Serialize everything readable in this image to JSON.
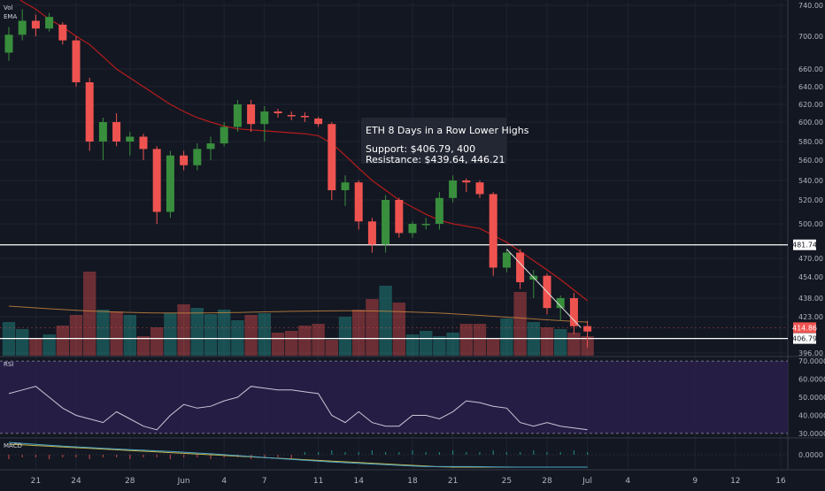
{
  "chart_data": {
    "type": "candlestick",
    "symbol_overlays": [
      "Vol",
      "EMA"
    ],
    "annotation": {
      "title": "ETH 8 Days in a Row Lower Highs",
      "support_line": "Support: $406.79, 400",
      "resistance_line": "Resistance: $439.64, 446.21"
    },
    "price_axis": {
      "ticks": [
        740,
        700,
        660,
        640,
        620,
        600,
        580,
        560,
        540,
        520,
        500,
        470,
        454,
        438,
        423,
        396
      ],
      "tick_labels": [
        "740.00",
        "700.00",
        "660.00",
        "640.00",
        "620.00",
        "600.00",
        "580.00",
        "560.00",
        "540.00",
        "520.00",
        "500.00",
        "470.00",
        "454.00",
        "438.00",
        "423.00",
        "396.00"
      ],
      "range": [
        392,
        745
      ]
    },
    "horizontal_lines": [
      {
        "value": 481.74,
        "label": "481.74",
        "role": "resistance"
      },
      {
        "value": 406.79,
        "label": "406.79",
        "role": "support"
      }
    ],
    "last_price": {
      "value": 414.86,
      "label": "414.86",
      "color": "#ef5350"
    },
    "x_axis": {
      "tick_labels": [
        "21",
        "24",
        "28",
        "Jun",
        "4",
        "7",
        "11",
        "14",
        "18",
        "21",
        "25",
        "28",
        "Jul",
        "4",
        "9",
        "12",
        "16"
      ]
    },
    "candles": [
      {
        "date": "May 19",
        "o": 680,
        "h": 712,
        "l": 670,
        "c": 702
      },
      {
        "date": "May 20",
        "o": 702,
        "h": 735,
        "l": 695,
        "c": 720
      },
      {
        "date": "May 21",
        "o": 720,
        "h": 728,
        "l": 700,
        "c": 710
      },
      {
        "date": "May 22",
        "o": 710,
        "h": 730,
        "l": 706,
        "c": 725
      },
      {
        "date": "May 23",
        "o": 715,
        "h": 718,
        "l": 690,
        "c": 695
      },
      {
        "date": "May 24",
        "o": 695,
        "h": 700,
        "l": 640,
        "c": 645
      },
      {
        "date": "May 25",
        "o": 645,
        "h": 650,
        "l": 570,
        "c": 580
      },
      {
        "date": "May 26",
        "o": 580,
        "h": 605,
        "l": 560,
        "c": 600
      },
      {
        "date": "May 27",
        "o": 600,
        "h": 610,
        "l": 575,
        "c": 580
      },
      {
        "date": "May 28",
        "o": 580,
        "h": 590,
        "l": 565,
        "c": 585
      },
      {
        "date": "May 29",
        "o": 585,
        "h": 588,
        "l": 560,
        "c": 572
      },
      {
        "date": "May 30",
        "o": 572,
        "h": 575,
        "l": 500,
        "c": 510
      },
      {
        "date": "May 31",
        "o": 510,
        "h": 570,
        "l": 505,
        "c": 565
      },
      {
        "date": "Jun 1",
        "o": 565,
        "h": 570,
        "l": 550,
        "c": 555
      },
      {
        "date": "Jun 2",
        "o": 555,
        "h": 578,
        "l": 550,
        "c": 572
      },
      {
        "date": "Jun 3",
        "o": 572,
        "h": 585,
        "l": 560,
        "c": 578
      },
      {
        "date": "Jun 4",
        "o": 578,
        "h": 600,
        "l": 575,
        "c": 595
      },
      {
        "date": "Jun 5",
        "o": 595,
        "h": 625,
        "l": 590,
        "c": 620
      },
      {
        "date": "Jun 6",
        "o": 620,
        "h": 625,
        "l": 590,
        "c": 598
      },
      {
        "date": "Jun 7",
        "o": 598,
        "h": 618,
        "l": 580,
        "c": 612
      },
      {
        "date": "Jun 8",
        "o": 612,
        "h": 615,
        "l": 605,
        "c": 610
      },
      {
        "date": "Jun 9",
        "o": 608,
        "h": 612,
        "l": 602,
        "c": 607
      },
      {
        "date": "Jun 10",
        "o": 607,
        "h": 611,
        "l": 600,
        "c": 606
      },
      {
        "date": "Jun 11",
        "o": 604,
        "h": 606,
        "l": 595,
        "c": 598
      },
      {
        "date": "Jun 12",
        "o": 598,
        "h": 600,
        "l": 520,
        "c": 530
      },
      {
        "date": "Jun 13",
        "o": 530,
        "h": 545,
        "l": 515,
        "c": 538
      },
      {
        "date": "Jun 14",
        "o": 538,
        "h": 540,
        "l": 495,
        "c": 502
      },
      {
        "date": "Jun 15",
        "o": 502,
        "h": 505,
        "l": 475,
        "c": 482
      },
      {
        "date": "Jun 16",
        "o": 482,
        "h": 525,
        "l": 475,
        "c": 520
      },
      {
        "date": "Jun 17",
        "o": 520,
        "h": 522,
        "l": 488,
        "c": 492
      },
      {
        "date": "Jun 18",
        "o": 492,
        "h": 502,
        "l": 488,
        "c": 500
      },
      {
        "date": "Jun 19",
        "o": 500,
        "h": 505,
        "l": 495,
        "c": 500
      },
      {
        "date": "Jun 20",
        "o": 500,
        "h": 528,
        "l": 495,
        "c": 522
      },
      {
        "date": "Jun 21",
        "o": 522,
        "h": 545,
        "l": 518,
        "c": 540
      },
      {
        "date": "Jun 22",
        "o": 540,
        "h": 542,
        "l": 528,
        "c": 538
      },
      {
        "date": "Jun 23",
        "o": 538,
        "h": 540,
        "l": 522,
        "c": 526
      },
      {
        "date": "Jun 24",
        "o": 526,
        "h": 528,
        "l": 455,
        "c": 462
      },
      {
        "date": "Jun 25",
        "o": 462,
        "h": 478,
        "l": 458,
        "c": 475
      },
      {
        "date": "Jun 26",
        "o": 475,
        "h": 478,
        "l": 445,
        "c": 450
      },
      {
        "date": "Jun 27",
        "o": 452,
        "h": 460,
        "l": 438,
        "c": 455
      },
      {
        "date": "Jun 28",
        "o": 455,
        "h": 457,
        "l": 425,
        "c": 430
      },
      {
        "date": "Jun 29",
        "o": 430,
        "h": 440,
        "l": 420,
        "c": 438
      },
      {
        "date": "Jun 30",
        "o": 438,
        "h": 442,
        "l": 410,
        "c": 416
      },
      {
        "date": "Jul 1",
        "o": 416,
        "h": 420,
        "l": 400,
        "c": 412
      }
    ],
    "ema": [
      760,
      745,
      735,
      722,
      712,
      700,
      690,
      675,
      660,
      650,
      640,
      630,
      620,
      612,
      605,
      600,
      596,
      593,
      592,
      591,
      590,
      589,
      588,
      586,
      578,
      565,
      552,
      540,
      530,
      520,
      514,
      508,
      503,
      500,
      498,
      496,
      490,
      484,
      476,
      468,
      460,
      452,
      444,
      436
    ],
    "trendline": [
      {
        "date": "Jun 25",
        "value": 478
      },
      {
        "date": "Jul 2",
        "value": 415
      }
    ],
    "volume_pane": {
      "label": "Vol"
    },
    "rsi": {
      "label": "RSI",
      "ticks": [
        70,
        60,
        50,
        40,
        30
      ],
      "tick_labels": [
        "70.0000",
        "60.0000",
        "50.0000",
        "40.0000",
        "30.0000"
      ],
      "range": [
        28,
        72
      ],
      "values": [
        52,
        54,
        56,
        50,
        44,
        40,
        38,
        36,
        42,
        38,
        34,
        32,
        40,
        46,
        44,
        45,
        48,
        50,
        56,
        55,
        54,
        54,
        53,
        52,
        40,
        36,
        42,
        36,
        34,
        34,
        40,
        40,
        38,
        42,
        48,
        47,
        45,
        44,
        36,
        34,
        36,
        34,
        33,
        32
      ]
    },
    "macd": {
      "label": "MACD",
      "ticks": [
        0
      ],
      "tick_labels": [
        "0.0000"
      ]
    },
    "colors": {
      "up": "#388e3c",
      "down": "#ef5350",
      "ema": "#b71c1c",
      "trendline": "#e0e0e0",
      "volume_up": "#26a69a",
      "volume_down": "#ef5350",
      "rsi_line": "#c8c8d8",
      "rsi_band": "#2a1f4a",
      "background": "#131722",
      "grid": "#1f2330"
    }
  }
}
